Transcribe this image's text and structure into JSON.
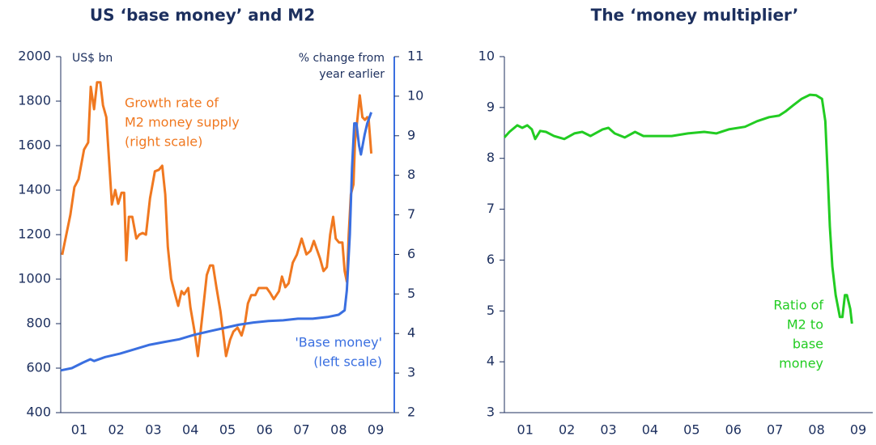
{
  "chart_data": [
    {
      "type": "line",
      "title": "US ‘base money’ and M2",
      "y_label": "US$ bn",
      "y2_label": [
        "% change from",
        "year earlier"
      ],
      "xlim": [
        1,
        10
      ],
      "xticks": [
        {
          "value": 1.5,
          "label": "01"
        },
        {
          "value": 2.5,
          "label": "02"
        },
        {
          "value": 3.5,
          "label": "03"
        },
        {
          "value": 4.5,
          "label": "04"
        },
        {
          "value": 5.5,
          "label": "05"
        },
        {
          "value": 6.5,
          "label": "06"
        },
        {
          "value": 7.5,
          "label": "07"
        },
        {
          "value": 8.5,
          "label": "08"
        },
        {
          "value": 9.5,
          "label": "09"
        }
      ],
      "ylim": [
        400,
        2000
      ],
      "yticks": [
        400,
        600,
        800,
        1000,
        1200,
        1400,
        1600,
        1800,
        2000
      ],
      "y2lim": [
        2,
        11
      ],
      "y2ticks": [
        2,
        3,
        4,
        5,
        6,
        7,
        8,
        9,
        10,
        11
      ],
      "series": [
        {
          "name": "Growth rate of M2 money supply",
          "color": "#f07820",
          "axis": "y2",
          "x": [
            1.04,
            1.26,
            1.37,
            1.48,
            1.63,
            1.74,
            1.81,
            1.9,
            1.98,
            2.07,
            2.14,
            2.23,
            2.38,
            2.47,
            2.55,
            2.64,
            2.71,
            2.77,
            2.84,
            2.93,
            3.04,
            3.12,
            3.21,
            3.3,
            3.41,
            3.54,
            3.65,
            3.74,
            3.82,
            3.89,
            3.98,
            4.09,
            4.17,
            4.26,
            4.33,
            4.44,
            4.5,
            4.61,
            4.7,
            4.81,
            4.94,
            5.03,
            5.11,
            5.2,
            5.31,
            5.46,
            5.57,
            5.66,
            5.77,
            5.88,
            5.97,
            6.05,
            6.14,
            6.25,
            6.34,
            6.45,
            6.56,
            6.65,
            6.75,
            6.89,
            6.97,
            7.06,
            7.15,
            7.26,
            7.37,
            7.5,
            7.63,
            7.74,
            7.83,
            7.91,
            8.0,
            8.09,
            8.18,
            8.27,
            8.35,
            8.42,
            8.51,
            8.6,
            8.66,
            8.72,
            8.77,
            8.83,
            8.9,
            8.94,
            9.01,
            9.07,
            9.14,
            9.21,
            9.27,
            9.31,
            9.38
          ],
          "values": [
            5.99,
            7.0,
            7.7,
            7.9,
            8.65,
            8.83,
            10.24,
            9.67,
            10.35,
            10.35,
            9.77,
            9.47,
            7.26,
            7.63,
            7.28,
            7.56,
            7.56,
            5.85,
            6.95,
            6.95,
            6.4,
            6.5,
            6.54,
            6.5,
            7.42,
            8.1,
            8.14,
            8.24,
            7.52,
            6.19,
            5.38,
            4.97,
            4.7,
            5.07,
            4.99,
            5.15,
            4.66,
            4.05,
            3.43,
            4.35,
            5.48,
            5.72,
            5.72,
            5.17,
            4.56,
            3.43,
            3.84,
            4.05,
            4.15,
            3.95,
            4.25,
            4.76,
            4.97,
            4.97,
            5.15,
            5.15,
            5.15,
            5.03,
            4.87,
            5.07,
            5.44,
            5.17,
            5.27,
            5.79,
            5.99,
            6.4,
            6.0,
            6.09,
            6.34,
            6.13,
            5.89,
            5.58,
            5.68,
            6.5,
            6.95,
            6.4,
            6.3,
            6.3,
            5.58,
            5.31,
            6.5,
            7.52,
            7.77,
            8.85,
            9.47,
            10.02,
            9.47,
            9.4,
            9.47,
            9.4,
            8.55
          ]
        },
        {
          "name": "Base money",
          "color": "#3a6fe0",
          "axis": "y",
          "x": [
            1.0,
            1.3,
            1.6,
            1.8,
            1.9,
            2.2,
            2.6,
            3.0,
            3.4,
            3.8,
            4.2,
            4.6,
            5.0,
            5.4,
            5.8,
            6.2,
            6.6,
            7.0,
            7.4,
            7.8,
            8.2,
            8.5,
            8.66,
            8.72,
            8.8,
            8.86,
            8.92,
            8.98,
            9.05,
            9.1,
            9.2,
            9.27,
            9.38
          ],
          "values": [
            590,
            600,
            625,
            640,
            632,
            650,
            665,
            685,
            705,
            718,
            730,
            750,
            765,
            780,
            795,
            805,
            812,
            815,
            822,
            822,
            830,
            840,
            860,
            950,
            1200,
            1500,
            1700,
            1700,
            1600,
            1560,
            1650,
            1700,
            1750
          ]
        }
      ],
      "annotations": [
        {
          "text": [
            "Growth rate of",
            "M2 money supply",
            "(right scale)"
          ],
          "color": "#f07820"
        },
        {
          "text": [
            "'Base money'",
            "(left scale)"
          ],
          "color": "#3a6fe0"
        }
      ]
    },
    {
      "type": "line",
      "title": "The ‘money multiplier’",
      "xlim": [
        1,
        9.85
      ],
      "xticks": [
        {
          "value": 1.5,
          "label": "01"
        },
        {
          "value": 2.5,
          "label": "02"
        },
        {
          "value": 3.5,
          "label": "03"
        },
        {
          "value": 4.5,
          "label": "04"
        },
        {
          "value": 5.5,
          "label": "05"
        },
        {
          "value": 6.5,
          "label": "06"
        },
        {
          "value": 7.5,
          "label": "07"
        },
        {
          "value": 8.5,
          "label": "08"
        },
        {
          "value": 9.5,
          "label": "09"
        }
      ],
      "ylim": [
        3,
        10
      ],
      "yticks": [
        3,
        4,
        5,
        6,
        7,
        8,
        9,
        10
      ],
      "series": [
        {
          "name": "Ratio of M2 to base money",
          "color": "#22cc22",
          "axis": "y",
          "x": [
            1.0,
            1.12,
            1.31,
            1.43,
            1.55,
            1.66,
            1.74,
            1.86,
            2.0,
            2.19,
            2.44,
            2.68,
            2.87,
            3.07,
            3.36,
            3.5,
            3.65,
            3.89,
            4.14,
            4.34,
            4.63,
            5.02,
            5.41,
            5.8,
            6.09,
            6.39,
            6.78,
            7.07,
            7.36,
            7.6,
            7.75,
            7.95,
            8.14,
            8.34,
            8.49,
            8.63,
            8.71,
            8.77,
            8.82,
            8.88,
            8.96,
            9.06,
            9.12,
            9.18,
            9.23,
            9.31,
            9.35
          ],
          "values": [
            8.41,
            8.52,
            8.65,
            8.6,
            8.65,
            8.57,
            8.38,
            8.54,
            8.52,
            8.44,
            8.38,
            8.49,
            8.52,
            8.44,
            8.57,
            8.6,
            8.49,
            8.41,
            8.52,
            8.44,
            8.44,
            8.44,
            8.49,
            8.52,
            8.49,
            8.57,
            8.62,
            8.73,
            8.81,
            8.84,
            8.92,
            9.05,
            9.17,
            9.25,
            9.24,
            9.17,
            8.73,
            7.62,
            6.66,
            5.87,
            5.31,
            4.88,
            4.88,
            5.31,
            5.31,
            5.04,
            4.75
          ]
        }
      ],
      "annotations": [
        {
          "text": [
            "Ratio of",
            "M2 to",
            "base",
            "money"
          ],
          "color": "#22cc22"
        }
      ]
    }
  ]
}
